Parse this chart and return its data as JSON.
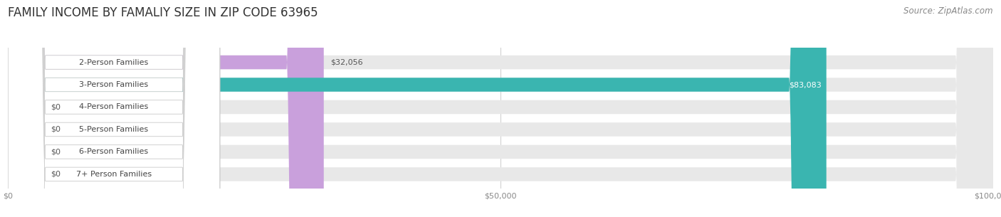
{
  "title": "FAMILY INCOME BY FAMALIY SIZE IN ZIP CODE 63965",
  "source": "Source: ZipAtlas.com",
  "categories": [
    "2-Person Families",
    "3-Person Families",
    "4-Person Families",
    "5-Person Families",
    "6-Person Families",
    "7+ Person Families"
  ],
  "values": [
    32056,
    83083,
    0,
    0,
    0,
    0
  ],
  "bar_colors": [
    "#c9a0dc",
    "#3ab5b0",
    "#b0b8e8",
    "#f9a0bc",
    "#f5c88a",
    "#f4a898"
  ],
  "value_labels": [
    "$32,056",
    "$83,083",
    "$0",
    "$0",
    "$0",
    "$0"
  ],
  "xlim": [
    0,
    100000
  ],
  "xticks": [
    0,
    50000,
    100000
  ],
  "xtick_labels": [
    "$0",
    "$50,000",
    "$100,000"
  ],
  "bg_color": "#ffffff",
  "bar_bg_color": "#e8e8e8",
  "title_fontsize": 12,
  "source_fontsize": 8.5,
  "label_fontsize": 8,
  "value_fontsize": 8,
  "bar_height": 0.62
}
